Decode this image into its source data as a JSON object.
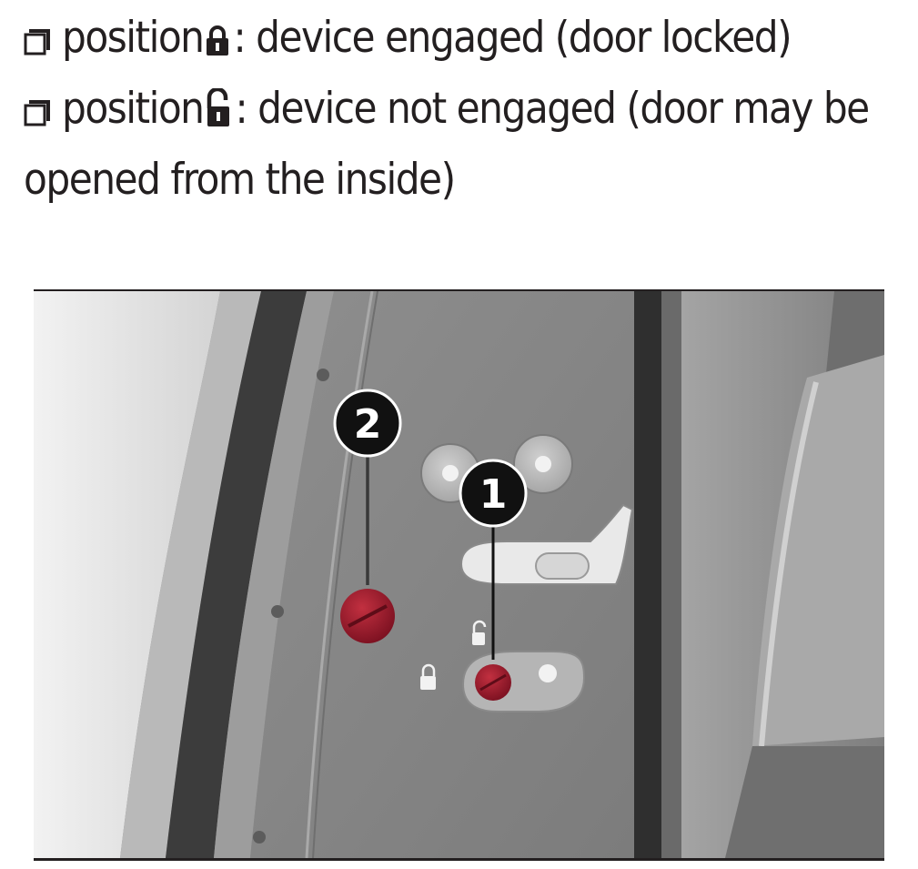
{
  "instructions": [
    {
      "prefix": "position",
      "icon": "padlock-closed-icon",
      "text": ": device engaged (door locked)"
    },
    {
      "prefix": "position",
      "icon": "padlock-open-icon",
      "text": ": device not engaged (door may be opened from the inside)"
    }
  ],
  "figure": {
    "callouts": [
      {
        "number": "1"
      },
      {
        "number": "2"
      }
    ],
    "colors": {
      "lock_knob": "#9c1a2a",
      "callout_fill": "#111111",
      "panel": "#8a8a8a",
      "seal": "#3a3a3a"
    }
  }
}
